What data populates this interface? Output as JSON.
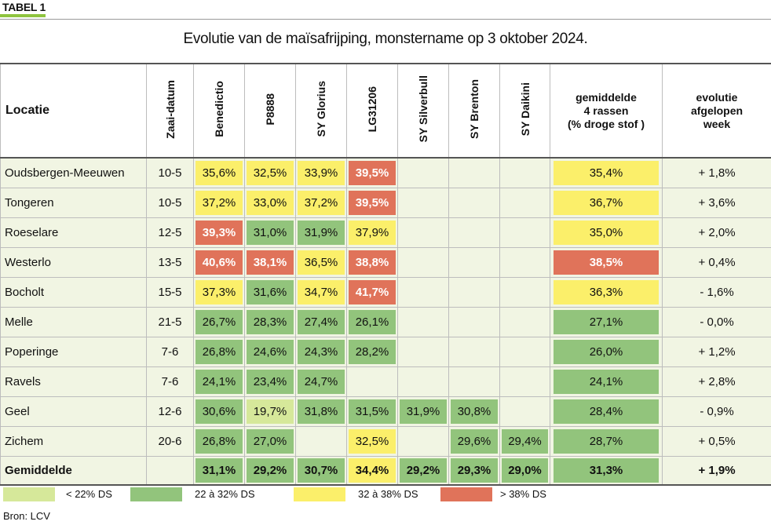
{
  "tag": "TABEL 1",
  "title": "Evolutie van de maïsafrijping, monstername op 3 oktober 2024.",
  "headers": {
    "locatie": "Locatie",
    "zaai": "Zaai-datum",
    "benedictio": "Benedictio",
    "p8888": "P8888",
    "sy_glorius": "SY Glorius",
    "lg31206": "LG31206",
    "sy_silverbull": "SY Silverbull",
    "sy_brenton": "SY Brenton",
    "sy_daikini": "SY Daikini",
    "gemiddelde_l1": "gemiddelde",
    "gemiddelde_l2": "4 rassen",
    "gemiddelde_l3": "(% droge stof )",
    "evolutie_l1": "evolutie",
    "evolutie_l2": "afgelopen",
    "evolutie_l3": "week"
  },
  "colors": {
    "light": "#d6e89a",
    "green": "#92c47c",
    "yellow": "#fbef6a",
    "red": "#e0735a",
    "row_bg": "#f1f5e3",
    "tag_bar": "#8fc43f"
  },
  "rows": [
    {
      "loc": "Oudsbergen-Meeuwen",
      "zaai": "10-5",
      "v": [
        [
          "35,6%",
          "yellow"
        ],
        [
          "32,5%",
          "yellow"
        ],
        [
          "33,9%",
          "yellow"
        ],
        [
          "39,5%",
          "red"
        ],
        [
          "",
          ""
        ],
        [
          "",
          ""
        ],
        [
          "",
          ""
        ]
      ],
      "gem": [
        "35,4%",
        "yellow"
      ],
      "evo": "+ 1,8%"
    },
    {
      "loc": "Tongeren",
      "zaai": "10-5",
      "v": [
        [
          "37,2%",
          "yellow"
        ],
        [
          "33,0%",
          "yellow"
        ],
        [
          "37,2%",
          "yellow"
        ],
        [
          "39,5%",
          "red"
        ],
        [
          "",
          ""
        ],
        [
          "",
          ""
        ],
        [
          "",
          ""
        ]
      ],
      "gem": [
        "36,7%",
        "yellow"
      ],
      "evo": "+ 3,6%"
    },
    {
      "loc": "Roeselare",
      "zaai": "12-5",
      "v": [
        [
          "39,3%",
          "red"
        ],
        [
          "31,0%",
          "green"
        ],
        [
          "31,9%",
          "green"
        ],
        [
          "37,9%",
          "yellow"
        ],
        [
          "",
          ""
        ],
        [
          "",
          ""
        ],
        [
          "",
          ""
        ]
      ],
      "gem": [
        "35,0%",
        "yellow"
      ],
      "evo": "+ 2,0%"
    },
    {
      "loc": "Westerlo",
      "zaai": "13-5",
      "v": [
        [
          "40,6%",
          "red"
        ],
        [
          "38,1%",
          "red"
        ],
        [
          "36,5%",
          "yellow"
        ],
        [
          "38,8%",
          "red"
        ],
        [
          "",
          ""
        ],
        [
          "",
          ""
        ],
        [
          "",
          ""
        ]
      ],
      "gem": [
        "38,5%",
        "red"
      ],
      "evo": "+ 0,4%"
    },
    {
      "loc": "Bocholt",
      "zaai": "15-5",
      "v": [
        [
          "37,3%",
          "yellow"
        ],
        [
          "31,6%",
          "green"
        ],
        [
          "34,7%",
          "yellow"
        ],
        [
          "41,7%",
          "red"
        ],
        [
          "",
          ""
        ],
        [
          "",
          ""
        ],
        [
          "",
          ""
        ]
      ],
      "gem": [
        "36,3%",
        "yellow"
      ],
      "evo": "- 1,6%"
    },
    {
      "loc": "Melle",
      "zaai": "21-5",
      "v": [
        [
          "26,7%",
          "green"
        ],
        [
          "28,3%",
          "green"
        ],
        [
          "27,4%",
          "green"
        ],
        [
          "26,1%",
          "green"
        ],
        [
          "",
          ""
        ],
        [
          "",
          ""
        ],
        [
          "",
          ""
        ]
      ],
      "gem": [
        "27,1%",
        "green"
      ],
      "evo": "- 0,0%"
    },
    {
      "loc": "Poperinge",
      "zaai": "7-6",
      "v": [
        [
          "26,8%",
          "green"
        ],
        [
          "24,6%",
          "green"
        ],
        [
          "24,3%",
          "green"
        ],
        [
          "28,2%",
          "green"
        ],
        [
          "",
          ""
        ],
        [
          "",
          ""
        ],
        [
          "",
          ""
        ]
      ],
      "gem": [
        "26,0%",
        "green"
      ],
      "evo": "+ 1,2%"
    },
    {
      "loc": "Ravels",
      "zaai": "7-6",
      "v": [
        [
          "24,1%",
          "green"
        ],
        [
          "23,4%",
          "green"
        ],
        [
          "24,7%",
          "green"
        ],
        [
          "",
          ""
        ],
        [
          "",
          ""
        ],
        [
          "",
          ""
        ],
        [
          "",
          ""
        ]
      ],
      "gem": [
        "24,1%",
        "green"
      ],
      "evo": "+ 2,8%"
    },
    {
      "loc": "Geel",
      "zaai": "12-6",
      "v": [
        [
          "30,6%",
          "green"
        ],
        [
          "19,7%",
          "light"
        ],
        [
          "31,8%",
          "green"
        ],
        [
          "31,5%",
          "green"
        ],
        [
          "31,9%",
          "green"
        ],
        [
          "30,8%",
          "green"
        ],
        [
          "",
          ""
        ]
      ],
      "gem": [
        "28,4%",
        "green"
      ],
      "evo": "- 0,9%"
    },
    {
      "loc": "Zichem",
      "zaai": "20-6",
      "v": [
        [
          "26,8%",
          "green"
        ],
        [
          "27,0%",
          "green"
        ],
        [
          "",
          ""
        ],
        [
          "32,5%",
          "yellow"
        ],
        [
          "",
          ""
        ],
        [
          "29,6%",
          "green"
        ],
        [
          "29,4%",
          "green"
        ]
      ],
      "gem": [
        "28,7%",
        "green"
      ],
      "evo": "+ 0,5%"
    }
  ],
  "average": {
    "label": "Gemiddelde",
    "zaai": "",
    "v": [
      [
        "31,1%",
        "green"
      ],
      [
        "29,2%",
        "green"
      ],
      [
        "30,7%",
        "green"
      ],
      [
        "34,4%",
        "yellow"
      ],
      [
        "29,2%",
        "green"
      ],
      [
        "29,3%",
        "green"
      ],
      [
        "29,0%",
        "green"
      ]
    ],
    "gem": [
      "31,3%",
      "green"
    ],
    "evo": "+ 1,9%"
  },
  "legend": [
    {
      "label": "< 22% DS",
      "color": "light"
    },
    {
      "label": "22 à 32% DS",
      "color": "green"
    },
    {
      "label": "32 à 38% DS",
      "color": "yellow"
    },
    {
      "label": "> 38% DS",
      "color": "red"
    }
  ],
  "source": "Bron: LCV"
}
